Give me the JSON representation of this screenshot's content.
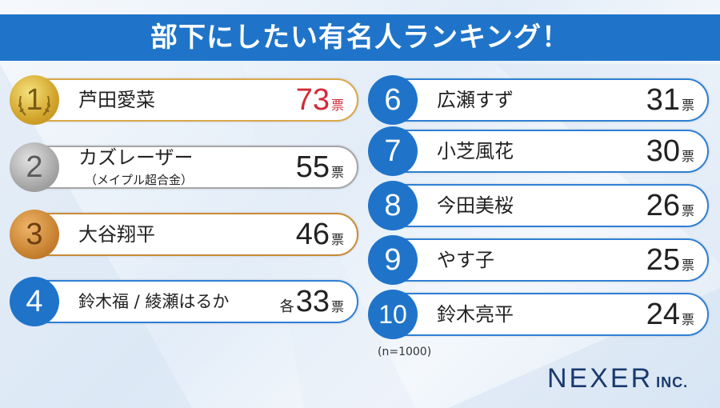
{
  "title": "部下にしたい有名人ランキング！",
  "vote_unit": "票",
  "tie_prefix": "各",
  "note": "(n=1000)",
  "logo": {
    "name": "NEXER",
    "suffix": "INC."
  },
  "colors": {
    "title_bg": "#1f74c9",
    "first_place_votes": "#d22b38",
    "rank_blue": "#1f74c9"
  },
  "chart_data": {
    "type": "table",
    "title": "部下にしたい有名人ランキング！",
    "unit": "票",
    "sample_size": "(n=1000)",
    "rows": [
      {
        "rank": "1",
        "name": "芦田愛菜",
        "sub": "",
        "votes": "73",
        "prefix": "",
        "medal": "gold"
      },
      {
        "rank": "2",
        "name": "カズレーザー",
        "sub": "（メイプル超合金）",
        "votes": "55",
        "prefix": "",
        "medal": "silver"
      },
      {
        "rank": "3",
        "name": "大谷翔平",
        "sub": "",
        "votes": "46",
        "prefix": "",
        "medal": "bronze"
      },
      {
        "rank": "4",
        "name": "鈴木福 / 綾瀬はるか",
        "sub": "",
        "votes": "33",
        "prefix": "各",
        "medal": ""
      },
      {
        "rank": "6",
        "name": "広瀬すず",
        "sub": "",
        "votes": "31",
        "prefix": "",
        "medal": ""
      },
      {
        "rank": "7",
        "name": "小芝風花",
        "sub": "",
        "votes": "30",
        "prefix": "",
        "medal": ""
      },
      {
        "rank": "8",
        "name": "今田美桜",
        "sub": "",
        "votes": "26",
        "prefix": "",
        "medal": ""
      },
      {
        "rank": "9",
        "name": "やす子",
        "sub": "",
        "votes": "25",
        "prefix": "",
        "medal": ""
      },
      {
        "rank": "10",
        "name": "鈴木亮平",
        "sub": "",
        "votes": "24",
        "prefix": "",
        "medal": ""
      }
    ]
  }
}
